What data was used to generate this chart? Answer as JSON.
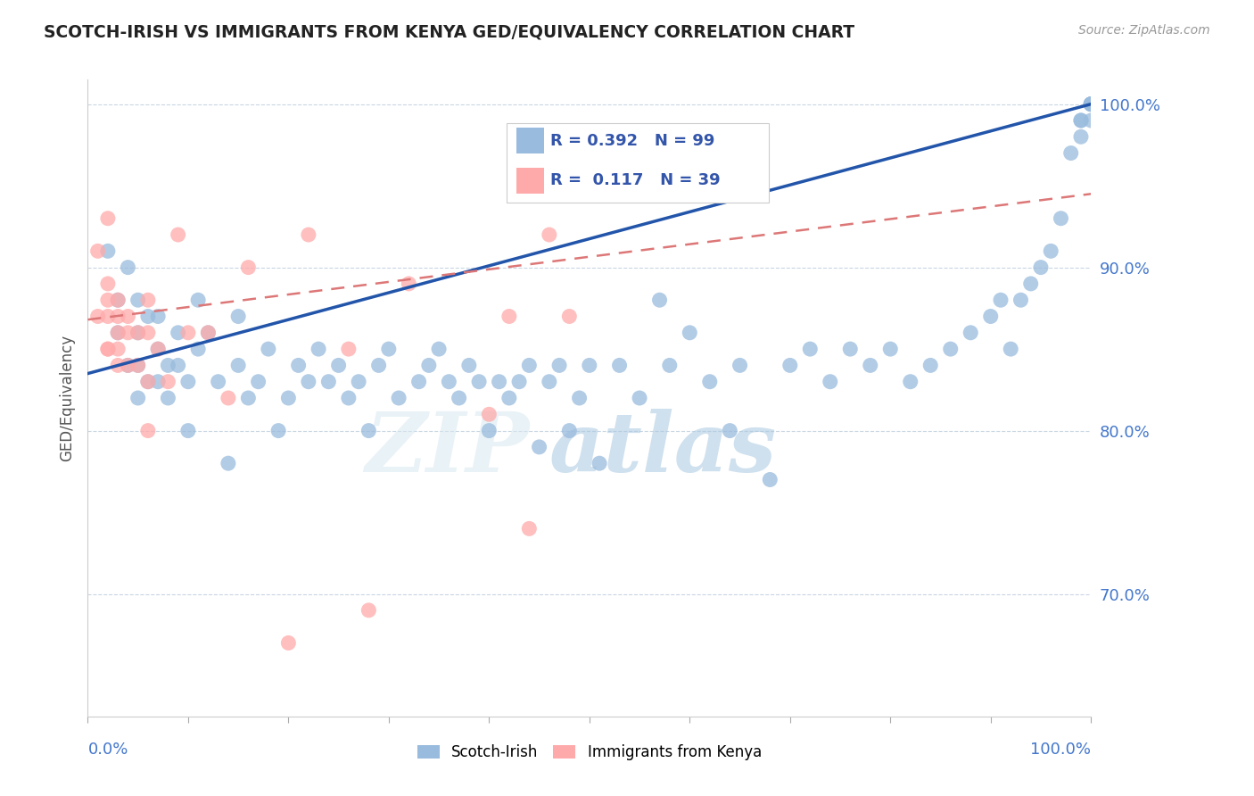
{
  "title": "SCOTCH-IRISH VS IMMIGRANTS FROM KENYA GED/EQUIVALENCY CORRELATION CHART",
  "source": "Source: ZipAtlas.com",
  "ylabel": "GED/Equivalency",
  "ytick_vals": [
    0.7,
    0.8,
    0.9,
    1.0
  ],
  "ytick_labels": [
    "70.0%",
    "80.0%",
    "90.0%",
    "100.0%"
  ],
  "ylim": [
    0.625,
    1.015
  ],
  "xlim": [
    0.0,
    1.0
  ],
  "blue_R": 0.392,
  "blue_N": 99,
  "pink_R": 0.117,
  "pink_N": 39,
  "blue_color": "#99BBDD",
  "pink_color": "#FFAAAA",
  "blue_line_color": "#2255AA",
  "pink_line_color": "#DD7777",
  "watermark_zip": "ZIP",
  "watermark_atlas": "atlas",
  "legend_label_blue": "Scotch-Irish",
  "legend_label_pink": "Immigrants from Kenya",
  "blue_line_x0": 0.0,
  "blue_line_y0": 0.835,
  "blue_line_x1": 1.0,
  "blue_line_y1": 1.0,
  "pink_line_x0": 0.0,
  "pink_line_y0": 0.868,
  "pink_line_x1": 1.0,
  "pink_line_y1": 0.945,
  "blue_scatter_x": [
    0.02,
    0.03,
    0.03,
    0.04,
    0.04,
    0.05,
    0.05,
    0.05,
    0.05,
    0.06,
    0.06,
    0.07,
    0.07,
    0.07,
    0.08,
    0.08,
    0.09,
    0.09,
    0.1,
    0.1,
    0.11,
    0.11,
    0.12,
    0.13,
    0.14,
    0.15,
    0.15,
    0.16,
    0.17,
    0.18,
    0.19,
    0.2,
    0.21,
    0.22,
    0.23,
    0.24,
    0.25,
    0.26,
    0.27,
    0.28,
    0.29,
    0.3,
    0.31,
    0.33,
    0.34,
    0.35,
    0.36,
    0.37,
    0.38,
    0.39,
    0.4,
    0.41,
    0.42,
    0.43,
    0.44,
    0.45,
    0.46,
    0.47,
    0.48,
    0.49,
    0.5,
    0.51,
    0.53,
    0.55,
    0.57,
    0.58,
    0.6,
    0.62,
    0.64,
    0.65,
    0.68,
    0.7,
    0.72,
    0.74,
    0.76,
    0.78,
    0.8,
    0.82,
    0.84,
    0.86,
    0.88,
    0.9,
    0.91,
    0.92,
    0.93,
    0.94,
    0.95,
    0.96,
    0.97,
    0.98,
    0.99,
    0.99,
    0.99,
    1.0,
    1.0,
    1.0,
    1.0,
    1.0,
    1.0
  ],
  "blue_scatter_y": [
    0.91,
    0.88,
    0.86,
    0.9,
    0.84,
    0.88,
    0.86,
    0.84,
    0.82,
    0.87,
    0.83,
    0.85,
    0.83,
    0.87,
    0.84,
    0.82,
    0.86,
    0.84,
    0.83,
    0.8,
    0.88,
    0.85,
    0.86,
    0.83,
    0.78,
    0.87,
    0.84,
    0.82,
    0.83,
    0.85,
    0.8,
    0.82,
    0.84,
    0.83,
    0.85,
    0.83,
    0.84,
    0.82,
    0.83,
    0.8,
    0.84,
    0.85,
    0.82,
    0.83,
    0.84,
    0.85,
    0.83,
    0.82,
    0.84,
    0.83,
    0.8,
    0.83,
    0.82,
    0.83,
    0.84,
    0.79,
    0.83,
    0.84,
    0.8,
    0.82,
    0.84,
    0.78,
    0.84,
    0.82,
    0.88,
    0.84,
    0.86,
    0.83,
    0.8,
    0.84,
    0.77,
    0.84,
    0.85,
    0.83,
    0.85,
    0.84,
    0.85,
    0.83,
    0.84,
    0.85,
    0.86,
    0.87,
    0.88,
    0.85,
    0.88,
    0.89,
    0.9,
    0.91,
    0.93,
    0.97,
    0.99,
    0.98,
    0.99,
    0.99,
    1.0,
    1.0,
    1.0,
    1.0,
    1.0
  ],
  "pink_scatter_x": [
    0.01,
    0.01,
    0.02,
    0.02,
    0.02,
    0.02,
    0.02,
    0.02,
    0.03,
    0.03,
    0.03,
    0.03,
    0.03,
    0.04,
    0.04,
    0.04,
    0.05,
    0.05,
    0.06,
    0.06,
    0.06,
    0.07,
    0.08,
    0.09,
    0.1,
    0.12,
    0.14,
    0.16,
    0.2,
    0.22,
    0.26,
    0.28,
    0.32,
    0.4,
    0.42,
    0.44,
    0.46,
    0.48,
    0.06
  ],
  "pink_scatter_y": [
    0.91,
    0.87,
    0.93,
    0.89,
    0.87,
    0.85,
    0.88,
    0.85,
    0.88,
    0.87,
    0.86,
    0.85,
    0.84,
    0.87,
    0.86,
    0.84,
    0.86,
    0.84,
    0.88,
    0.86,
    0.83,
    0.85,
    0.83,
    0.92,
    0.86,
    0.86,
    0.82,
    0.9,
    0.67,
    0.92,
    0.85,
    0.69,
    0.89,
    0.81,
    0.87,
    0.74,
    0.92,
    0.87,
    0.8
  ]
}
